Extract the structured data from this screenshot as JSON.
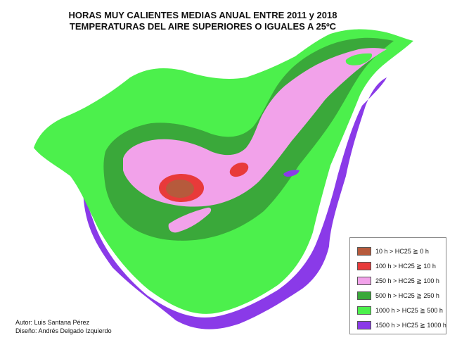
{
  "title": {
    "line1": "HORAS MUY CALIENTES MEDIAS ANUAL ENTRE 2011 y 2018",
    "line2": "TEMPERATURAS DEL AIRE SUPERIORES O IGUALES A 25ºC"
  },
  "legend": {
    "items": [
      {
        "label": "10 h > HC25 ≧ 0 h",
        "color": "#b65a3c"
      },
      {
        "label": "100 h > HC25 ≧ 10 h",
        "color": "#e83a3a"
      },
      {
        "label": "250 h > HC25 ≧ 100 h",
        "color": "#f2a2ea"
      },
      {
        "label": "500 h > HC25 ≧ 250 h",
        "color": "#3aa83a"
      },
      {
        "label": "1000 h > HC25 ≧ 500 h",
        "color": "#4cf04c"
      },
      {
        "label": "1500 h > HC25 ≧ 1000 h",
        "color": "#8a3ae8"
      }
    ]
  },
  "credits": {
    "author": "Autor: Luis Santana Pérez",
    "design": "Diseño: Andrés Delgado Izquierdo"
  }
}
